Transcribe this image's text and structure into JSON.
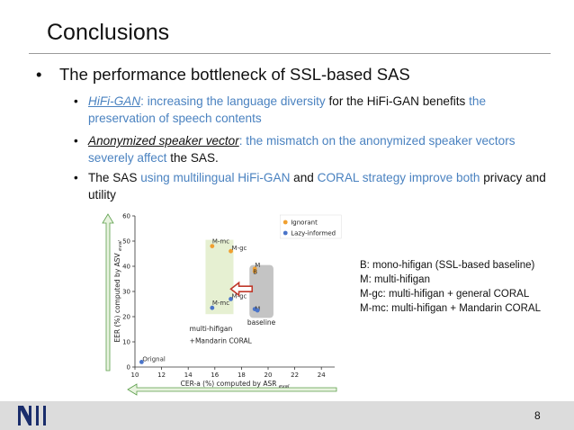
{
  "slide": {
    "title": "Conclusions",
    "main_bullet": "The performance bottleneck of SSL-based SAS",
    "sub_bullets": [
      {
        "parts": [
          {
            "text": "HiFi-GAN",
            "cls": "blue emph"
          },
          {
            "text": ": increasing the language diversity ",
            "cls": "blue"
          },
          {
            "text": "for the HiFi-GAN benefits ",
            "cls": ""
          },
          {
            "text": "the preservation of speech contents",
            "cls": "blue"
          }
        ]
      },
      {
        "parts": [
          {
            "text": "Anonymized speaker vector",
            "cls": "emph"
          },
          {
            "text": ": the mismatch on the anonymized speaker vectors severely affect ",
            "cls": "blue"
          },
          {
            "text": "the SAS.",
            "cls": ""
          }
        ]
      },
      {
        "parts": [
          {
            "text": "The SAS ",
            "cls": ""
          },
          {
            "text": "using multilingual HiFi-GAN ",
            "cls": "blue"
          },
          {
            "text": "and ",
            "cls": ""
          },
          {
            "text": "CORAL strategy improve both ",
            "cls": "blue"
          },
          {
            "text": "privacy and utility",
            "cls": ""
          }
        ]
      }
    ],
    "legend_desc": [
      "B: mono-hifigan (SSL-based baseline)",
      "M: multi-hifigan",
      "M-gc: multi-hifigan + general CORAL",
      "M-mc: multi-hifigan + Mandarin CORAL"
    ],
    "footer": {
      "logo_text": "NII",
      "page_number": "8"
    }
  },
  "chart_data": {
    "type": "scatter",
    "xlabel": "CER-a (%) computed by ASR",
    "xlabel_sub": "eval",
    "ylabel": "EER (%) computed by ASV",
    "ylabel_sub": "eval",
    "xlim": [
      10,
      25
    ],
    "ylim": [
      0,
      60
    ],
    "xticks": [
      10,
      12,
      14,
      16,
      18,
      20,
      22,
      24
    ],
    "yticks": [
      0,
      10,
      20,
      30,
      40,
      50,
      60
    ],
    "legend_position": "top-right",
    "series": [
      {
        "name": "Ignorant",
        "color": "#f0a030",
        "points": [
          {
            "x": 15.8,
            "y": 48,
            "label": "M-mc"
          },
          {
            "x": 17.2,
            "y": 46,
            "label": "M-gc"
          },
          {
            "x": 19.0,
            "y": 39,
            "label": "M"
          },
          {
            "x": 19.0,
            "y": 38,
            "label": "B"
          }
        ]
      },
      {
        "name": "Lazy-informed",
        "color": "#4a74c9",
        "points": [
          {
            "x": 15.8,
            "y": 23.5,
            "label": "M-mc"
          },
          {
            "x": 17.2,
            "y": 27,
            "label": "M-gc"
          },
          {
            "x": 19.0,
            "y": 23,
            "label": "M"
          },
          {
            "x": 19.2,
            "y": 22.5,
            "label": ""
          },
          {
            "x": 10.5,
            "y": 2,
            "label": "Orignal"
          }
        ]
      }
    ],
    "annotations": [
      {
        "text": "multi-hifigan"
      },
      {
        "text": "+Mandarin CORAL"
      },
      {
        "text": "baseline"
      }
    ],
    "colors": {
      "green_box": "#e6f0d2",
      "gray_box": "#c4c4c4",
      "red_arrow": "#c0392b",
      "axis_arrow_fill": "#e8f3df",
      "axis_arrow_stroke": "#5b9e4a"
    }
  }
}
